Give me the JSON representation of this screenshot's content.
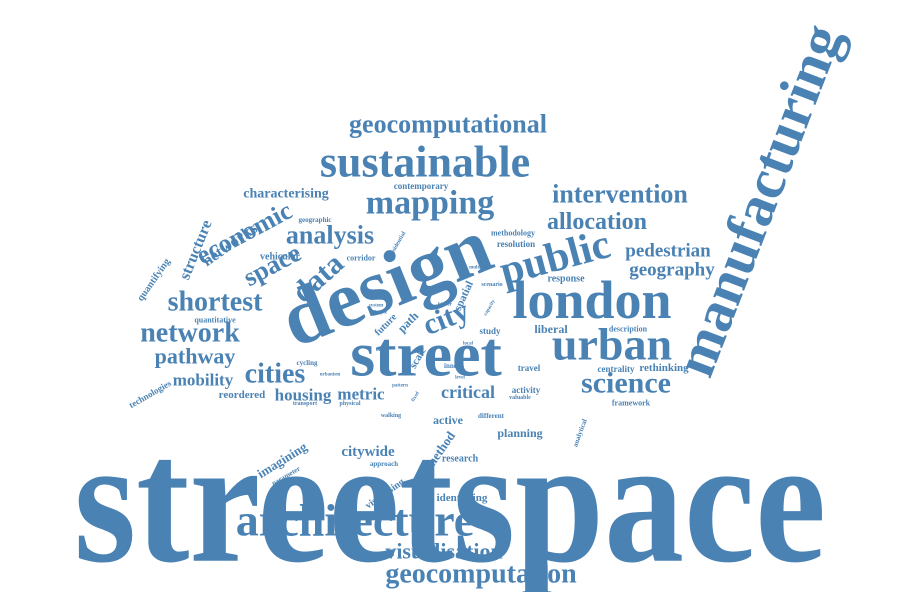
{
  "colors": {
    "word": "#4a82b4",
    "background": "#ffffff"
  },
  "words": [
    "streetspace",
    "manufacturing",
    "design",
    "street",
    "london",
    "sustainable",
    "architecture",
    "urban",
    "public",
    "mapping",
    "geocomputational",
    "intervention",
    "allocation",
    "science",
    "geocomputation",
    "visualisation",
    "city",
    "cities",
    "network",
    "shortest",
    "analysis",
    "data",
    "space",
    "economic",
    "pathway",
    "mobility",
    "geography",
    "pedestrian",
    "networks",
    "structure",
    "characterising",
    "housing",
    "metric",
    "critical",
    "citywide",
    "imagining",
    "planning",
    "active",
    "method",
    "identifying",
    "visualising",
    "research",
    "rethinking",
    "liberal",
    "reordered",
    "technologies",
    "quantifying",
    "quantitative",
    "vehicular",
    "corridor",
    "geographic",
    "contemporary",
    "methodology",
    "resolution",
    "response",
    "future",
    "path",
    "scale",
    "spatial",
    "cycling",
    "study",
    "travel",
    "activity",
    "centrality",
    "framework",
    "description",
    "different",
    "analytical",
    "approach",
    "parameter",
    "transport",
    "physical",
    "walking",
    "inner",
    "offer",
    "valuable",
    "residential",
    "scenario",
    "multiple",
    "system",
    "level",
    "higher",
    "capacity",
    "pattern",
    "fixed",
    "simple",
    "local",
    "urbanism"
  ]
}
